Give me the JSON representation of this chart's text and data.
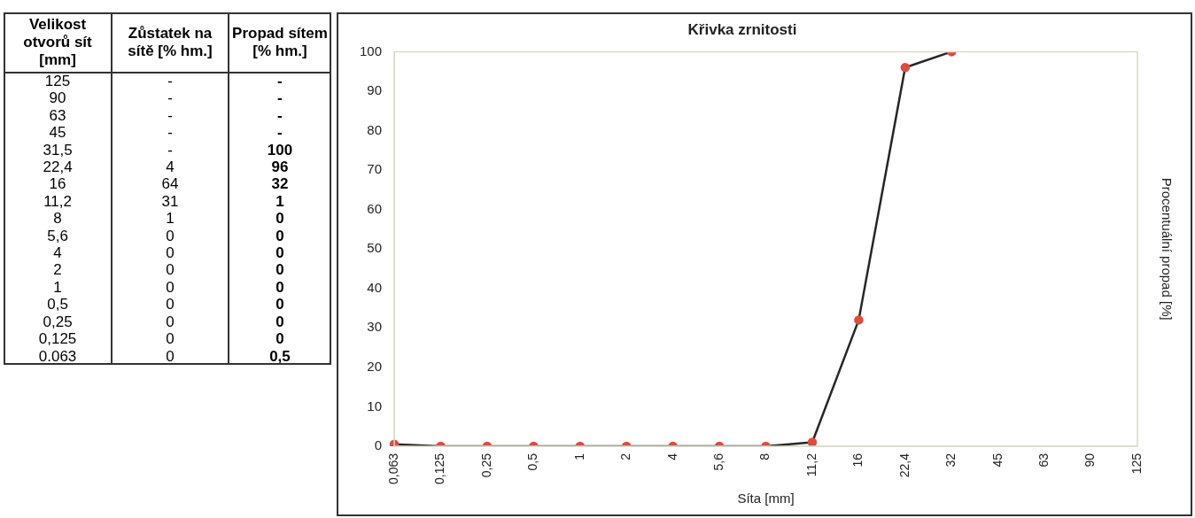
{
  "chart_data": [
    {
      "type": "heatmap",
      "ylabel": "Velikost otvorů sít [mm]",
      "categories": [
        "Zůstatek na sítě [% hm.]",
        "Propad sítem [% hm.]"
      ],
      "y_categories": [
        "125",
        "90",
        "63",
        "45",
        "31,5",
        "22,4",
        "16",
        "11,2",
        "8",
        "5,6",
        "4",
        "2",
        "1",
        "0,5",
        "0,25",
        "0,125",
        "0.063"
      ],
      "cells": [
        [
          null,
          null
        ],
        [
          null,
          null
        ],
        [
          null,
          null
        ],
        [
          null,
          null
        ],
        [
          null,
          100
        ],
        [
          4,
          96
        ],
        [
          64,
          32
        ],
        [
          31,
          1
        ],
        [
          1,
          0
        ],
        [
          0,
          0
        ],
        [
          0,
          0
        ],
        [
          0,
          0
        ],
        [
          0,
          0
        ],
        [
          0,
          0
        ],
        [
          0,
          0
        ],
        [
          0,
          0
        ],
        [
          0,
          0.5
        ]
      ],
      "cell_labels": [
        [
          "-",
          "-"
        ],
        [
          "-",
          "-"
        ],
        [
          "-",
          "-"
        ],
        [
          "-",
          "-"
        ],
        [
          "-",
          "100"
        ],
        [
          "4",
          "96"
        ],
        [
          "64",
          "32"
        ],
        [
          "31",
          "1"
        ],
        [
          "1",
          "0"
        ],
        [
          "0",
          "0"
        ],
        [
          "0",
          "0"
        ],
        [
          "0",
          "0"
        ],
        [
          "0",
          "0"
        ],
        [
          "0",
          "0"
        ],
        [
          "0",
          "0"
        ],
        [
          "0",
          "0"
        ],
        [
          "0",
          "0,5"
        ]
      ]
    },
    {
      "type": "line",
      "title": "Křivka zrnitosti",
      "xlabel": "Síta [mm]",
      "ylabel": "Procentuální propad [%]",
      "categories": [
        "0,063",
        "0,125",
        "0,25",
        "0,5",
        "1",
        "2",
        "4",
        "5,6",
        "8",
        "11,2",
        "16",
        "22,4",
        "32",
        "45",
        "63",
        "90",
        "125"
      ],
      "series": [
        {
          "color": "#262626",
          "colors": [
            "#e04b3f",
            "#e04b3f",
            "#e04b3f",
            "#e04b3f",
            "#e04b3f",
            "#e04b3f",
            "#e04b3f",
            "#e04b3f",
            "#e04b3f",
            "#e04b3f",
            "#e04b3f",
            "#e04b3f",
            "#e04b3f",
            "#e04b3f",
            "#e04b3f",
            "#e04b3f",
            "#e04b3f"
          ],
          "values": [
            0.5,
            0,
            0,
            0,
            0,
            0,
            0,
            0,
            0,
            1,
            32,
            96,
            100,
            null,
            null,
            null,
            null
          ]
        }
      ],
      "ylim": [
        0,
        100
      ],
      "yticks": [
        0,
        10,
        20,
        30,
        40,
        50,
        60,
        70,
        80,
        90,
        100
      ],
      "marker": "circle",
      "line_style": "solid",
      "grid": false,
      "legend": false
    }
  ]
}
